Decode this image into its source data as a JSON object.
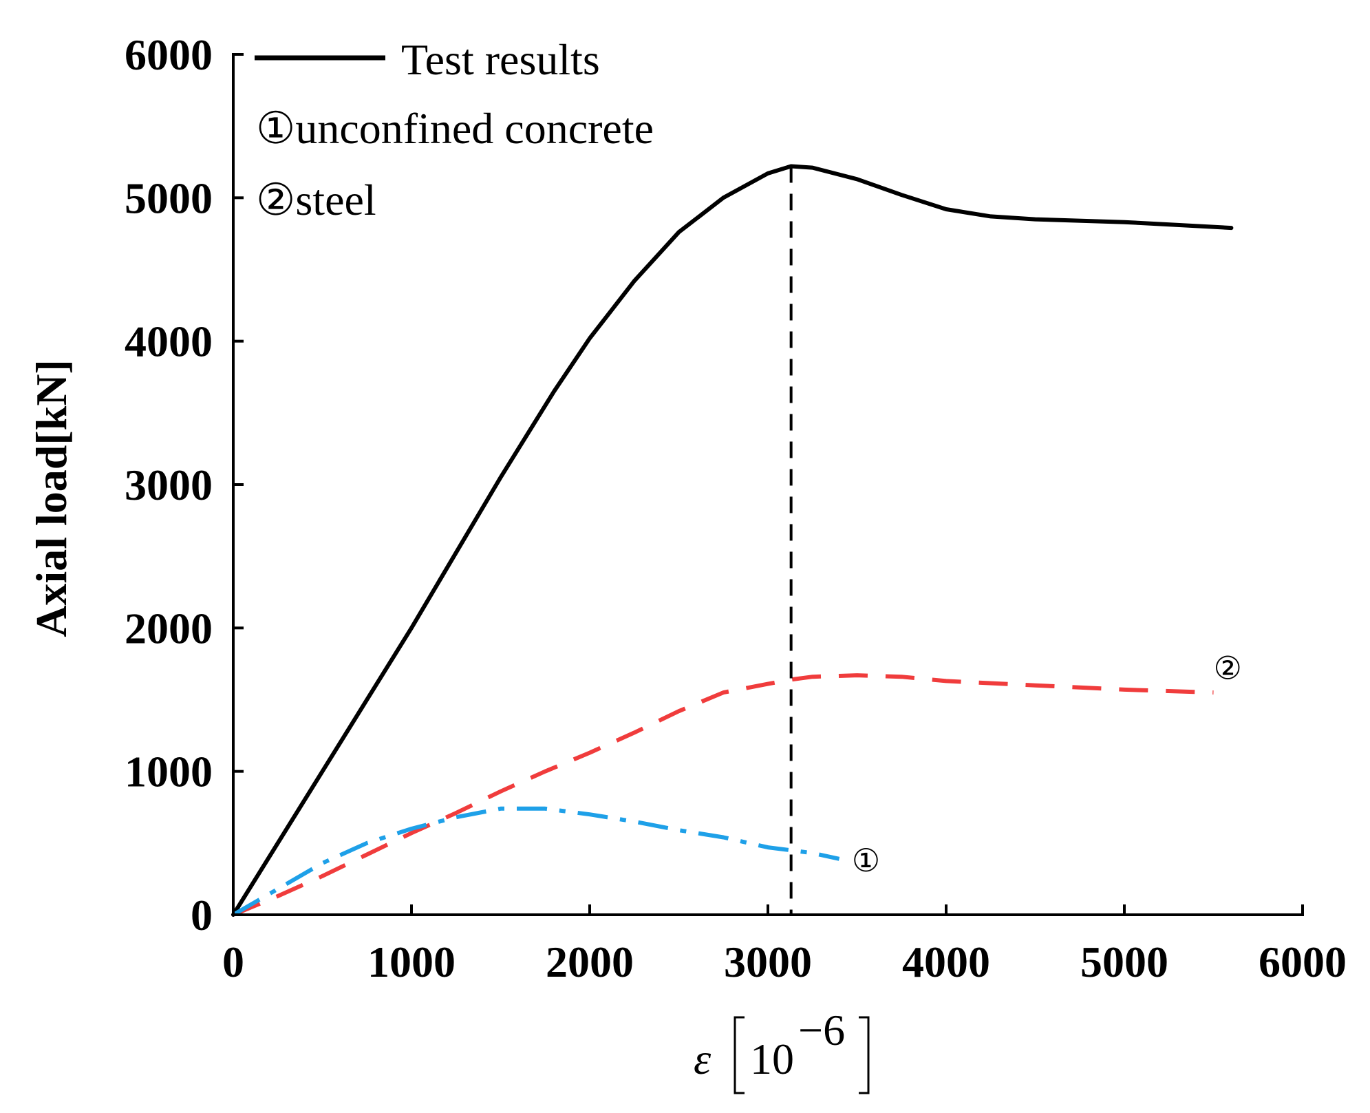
{
  "chart_data": {
    "type": "line",
    "xlabel": {
      "symbol": "ε",
      "unit_base": "10",
      "unit_exp": "−6"
    },
    "ylabel": "Axial load[kN]",
    "xlim": [
      0,
      6000
    ],
    "ylim": [
      0,
      6000
    ],
    "x_ticks": [
      0,
      1000,
      2000,
      3000,
      4000,
      5000,
      6000
    ],
    "y_ticks": [
      0,
      1000,
      2000,
      3000,
      4000,
      5000,
      6000
    ],
    "grid": false,
    "legend": [
      {
        "text": "Test results",
        "marker": "line"
      },
      {
        "text": "①unconfined concrete",
        "marker": "none"
      },
      {
        "text": "②steel",
        "marker": "none"
      }
    ],
    "series": [
      {
        "name": "Test results",
        "style": "solid",
        "color": "#000000",
        "x": [
          0,
          500,
          1000,
          1500,
          1800,
          2000,
          2250,
          2500,
          2750,
          3000,
          3130,
          3250,
          3500,
          3750,
          4000,
          4250,
          4500,
          5000,
          5300,
          5600
        ],
        "y": [
          0,
          1000,
          2000,
          3050,
          3650,
          4020,
          4420,
          4760,
          5000,
          5170,
          5220,
          5210,
          5130,
          5020,
          4920,
          4870,
          4850,
          4830,
          4810,
          4790
        ]
      },
      {
        "name": "②",
        "style": "dashed",
        "color": "#f03c3c",
        "x": [
          0,
          250,
          500,
          750,
          1000,
          1250,
          1500,
          1750,
          2000,
          2250,
          2500,
          2750,
          3000,
          3130,
          3250,
          3500,
          3750,
          4000,
          4500,
          5000,
          5500
        ],
        "y": [
          0,
          130,
          270,
          420,
          570,
          710,
          860,
          1000,
          1130,
          1270,
          1420,
          1550,
          1610,
          1640,
          1660,
          1670,
          1660,
          1630,
          1600,
          1570,
          1550
        ]
      },
      {
        "name": "①",
        "style": "dash-dot",
        "color": "#1ea0e8",
        "x": [
          0,
          250,
          500,
          750,
          1000,
          1250,
          1500,
          1750,
          2000,
          2250,
          2500,
          2750,
          3000,
          3130,
          3250,
          3400
        ],
        "y": [
          0,
          180,
          360,
          500,
          600,
          680,
          740,
          740,
          700,
          650,
          590,
          540,
          470,
          450,
          430,
          390
        ]
      }
    ],
    "annotations": [
      {
        "text": "①",
        "x": 3550,
        "y": 380
      },
      {
        "text": "②",
        "x": 5580,
        "y": 1720
      }
    ],
    "reference_line": {
      "x": 3130,
      "style": "dashed",
      "color": "#000000"
    }
  }
}
